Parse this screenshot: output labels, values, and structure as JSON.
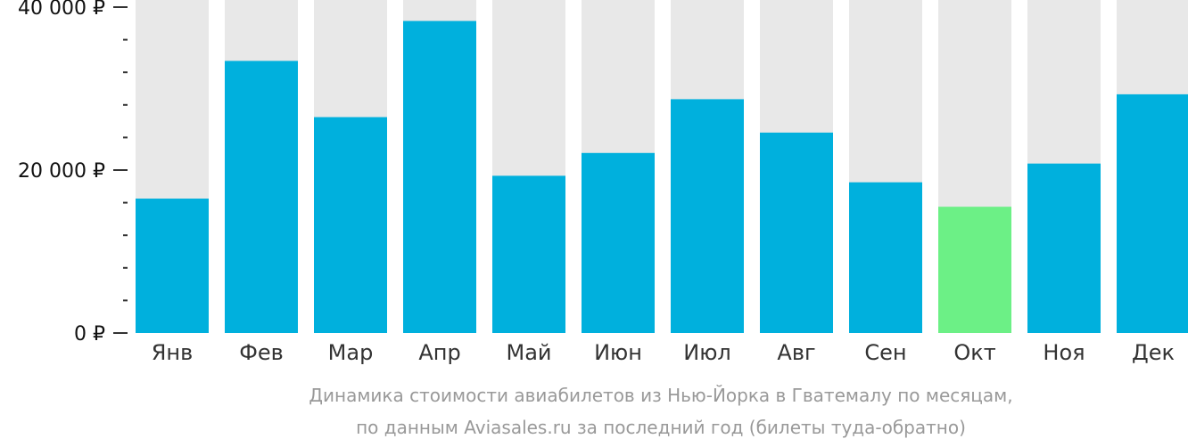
{
  "chart_data": {
    "type": "bar",
    "categories": [
      "Янв",
      "Фев",
      "Мар",
      "Апр",
      "Май",
      "Июн",
      "Июл",
      "Авг",
      "Сен",
      "Окт",
      "Ноя",
      "Дек"
    ],
    "values": [
      16500,
      33400,
      26500,
      38300,
      19300,
      22100,
      28700,
      24600,
      18500,
      15500,
      20800,
      29300
    ],
    "highlight_index": 9,
    "ylim": [
      0,
      40000
    ],
    "yticks": [
      {
        "value": 0,
        "label": "0 ₽"
      },
      {
        "value": 20000,
        "label": "20 000 ₽"
      },
      {
        "value": 40000,
        "label": "40 000 ₽"
      }
    ],
    "minor_ytick_step": 4000,
    "colors": {
      "bar": "#00B0DD",
      "highlight": "#6CF086",
      "background_bar": "#E8E8E8",
      "axis": "#333333"
    },
    "grid": false,
    "legend": "none"
  },
  "caption": {
    "line1": "Динамика стоимости авиабилетов из Нью-Йорка в Гватемалу по месяцам,",
    "line2": "по данным Aviasales.ru за последний год (билеты туда-обратно)"
  }
}
